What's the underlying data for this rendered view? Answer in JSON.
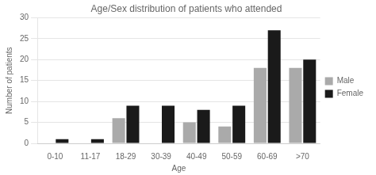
{
  "chart_data": {
    "type": "bar",
    "title": "Age/Sex distribution of patients who attended",
    "xlabel": "Age",
    "ylabel": "Number of patients",
    "categories": [
      "0-10",
      "11-17",
      "18-29",
      "30-39",
      "40-49",
      "50-59",
      "60-69",
      ">70"
    ],
    "series": [
      {
        "name": "Male",
        "color": "#aaaaaa",
        "values": [
          0,
          0,
          6,
          0,
          5,
          4,
          18,
          18
        ]
      },
      {
        "name": "Female",
        "color": "#1a1a1a",
        "values": [
          1,
          1,
          9,
          9,
          8,
          9,
          27,
          20
        ]
      }
    ],
    "ylim": [
      0,
      30
    ],
    "yticks": [
      0,
      5,
      10,
      15,
      20,
      25,
      30
    ],
    "grid": true,
    "legend": "right"
  }
}
